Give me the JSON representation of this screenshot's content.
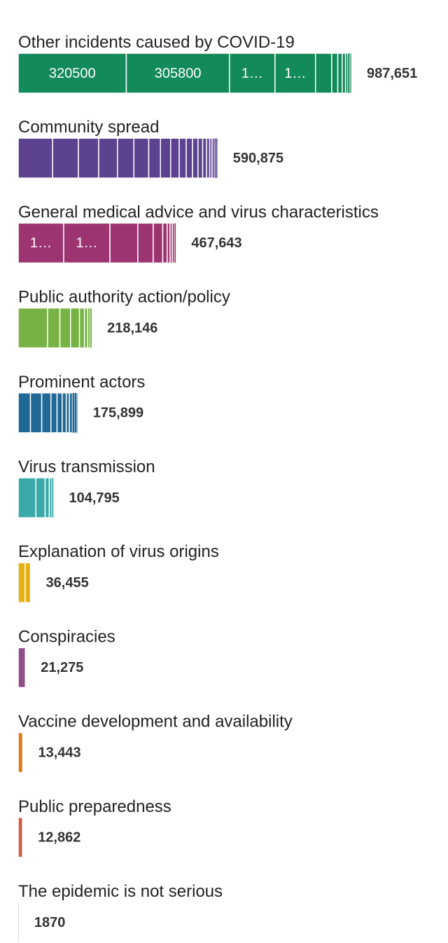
{
  "chart_data": {
    "type": "stacked-bar",
    "orientation": "horizontal",
    "categories": [
      "Other incidents caused by COVID-19",
      "Community spread",
      "General medical advice and virus characteristics",
      "Public authority action/policy",
      "Prominent actors",
      "Virus transmission",
      "Explanation of virus origins",
      "Conspiracies",
      "Vaccine development and availability",
      "Public preparedness",
      "The epidemic is not serious"
    ],
    "totals": [
      987651,
      590875,
      467643,
      218146,
      175899,
      104795,
      36455,
      21275,
      13443,
      12862,
      1870
    ],
    "value_labels": [
      "987,651",
      "590,875",
      "467,643",
      "218,146",
      "175,899",
      "104,795",
      "36,455",
      "21,275",
      "13,443",
      "12,862",
      "1870"
    ],
    "colors": [
      "#138a5a",
      "#5d4290",
      "#9b3470",
      "#77b244",
      "#206896",
      "#3ba9a9",
      "#e5b014",
      "#8e4f86",
      "#e07c12",
      "#cf5a48",
      "#999999"
    ],
    "segments": [
      [
        320500,
        305800,
        135000,
        120000,
        48000,
        18000,
        13000,
        10000,
        7000,
        5000,
        3000,
        2351
      ],
      [
        101950,
        76460,
        60240,
        55610,
        48660,
        44020,
        34760,
        30120,
        25490,
        20850,
        18540,
        16220,
        13900,
        11590,
        9270,
        6950,
        6950,
        4630,
        4630
      ],
      [
        134850,
        137030,
        82650,
        45680,
        28280,
        13050,
        8700,
        6530,
        6530,
        4350
      ],
      [
        87260,
        36360,
        31510,
        26660,
        14540,
        9700,
        7270,
        4850
      ],
      [
        36390,
        33360,
        27290,
        18200,
        15160,
        12130,
        9100,
        9100,
        6070,
        6070,
        3030
      ],
      [
        52400,
        27450,
        12480,
        7490,
        4990
      ],
      [
        20830,
        15620
      ],
      [
        21275
      ],
      [
        13443
      ],
      [
        12862
      ],
      [
        1870
      ]
    ],
    "segment_labels": [
      [
        "320500",
        "305800",
        "1…",
        "1…",
        null,
        null,
        null,
        null,
        null,
        null,
        null,
        null
      ],
      [
        null,
        null,
        null,
        null,
        null,
        null,
        null,
        null,
        null,
        null,
        null,
        null,
        null,
        null,
        null,
        null,
        null,
        null,
        null
      ],
      [
        "1…",
        "1…",
        null,
        null,
        null,
        null,
        null,
        null,
        null,
        null
      ],
      [
        null,
        null,
        null,
        null,
        null,
        null,
        null,
        null
      ],
      [
        null,
        null,
        null,
        null,
        null,
        null,
        null,
        null,
        null,
        null,
        null
      ],
      [
        null,
        null,
        null,
        null,
        null
      ],
      [
        null,
        null
      ],
      [
        null
      ],
      [
        null
      ],
      [
        null
      ],
      [
        null
      ]
    ]
  }
}
